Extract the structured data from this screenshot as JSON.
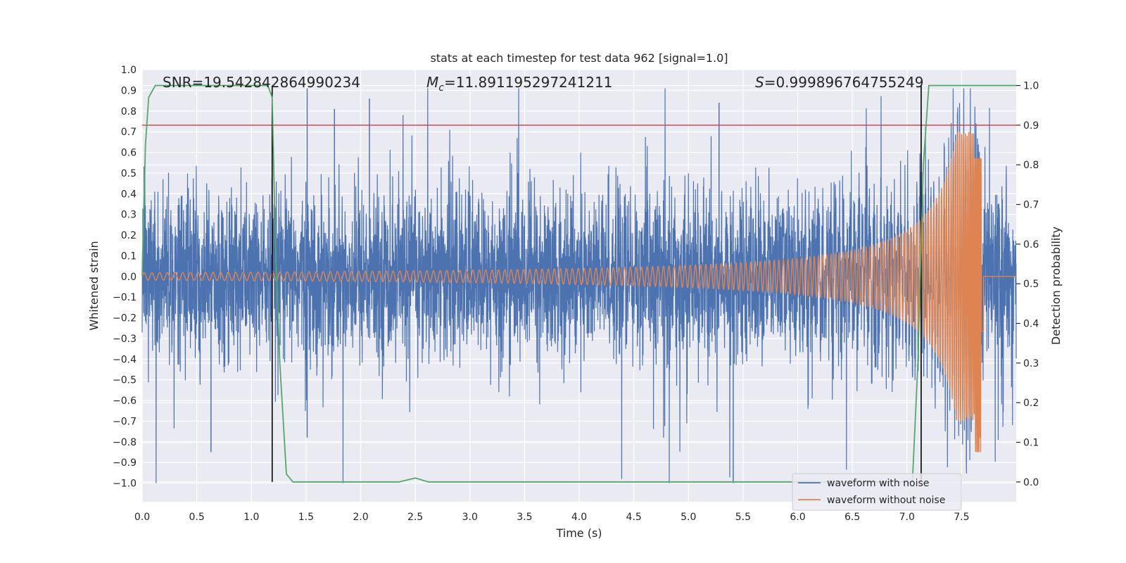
{
  "chart_data": {
    "type": "line",
    "title": "stats at each timestep for test data 962 [signal=1.0]",
    "xlabel": "Time (s)",
    "ylabel": "Whitened strain",
    "y2label": "Detection probability",
    "xlim": [
      0.0,
      8.0
    ],
    "ylim": [
      -1.09,
      1.0
    ],
    "y2lim": [
      -0.05,
      1.04
    ],
    "xticks": [
      "0.0",
      "0.5",
      "1.0",
      "1.5",
      "2.0",
      "2.5",
      "3.0",
      "3.5",
      "4.0",
      "4.5",
      "5.0",
      "5.5",
      "6.0",
      "6.5",
      "7.0",
      "7.5"
    ],
    "yticks": [
      "1.0",
      "0.9",
      "0.8",
      "0.7",
      "0.6",
      "0.5",
      "0.4",
      "0.3",
      "0.2",
      "0.1",
      "0.0",
      "−0.1",
      "−0.2",
      "−0.3",
      "−0.4",
      "−0.5",
      "−0.6",
      "−0.7",
      "−0.8",
      "−0.9",
      "−1.0"
    ],
    "y2ticks": [
      "1.0",
      "0.9",
      "0.8",
      "0.7",
      "0.6",
      "0.5",
      "0.4",
      "0.3",
      "0.2",
      "0.1",
      "0.0"
    ],
    "grid": true,
    "legend_position": "lower-right",
    "annotations": {
      "snr": "SNR=19.542842864990234",
      "mc_symbol": "M",
      "mc_sub": "c",
      "mc_value": "=11.891195297241211",
      "s_symbol": "S",
      "s_value": "=0.999896764755249"
    },
    "threshold_line": {
      "y2": 0.9,
      "color": "#c44e52"
    },
    "vertical_lines": [
      1.19,
      7.13
    ],
    "series": [
      {
        "name": "waveform with noise",
        "color": "#4c72b0",
        "envelope": {
          "core_amplitude": 0.3,
          "spike_max": 0.91,
          "spike_min": -1.0,
          "extreme_spikes": [
            [
              1.51,
              0.91
            ],
            [
              1.76,
              0.81
            ],
            [
              2.08,
              0.86
            ],
            [
              5.28,
              0.84
            ],
            [
              5.41,
              -1.0
            ],
            [
              0.63,
              -0.85
            ],
            [
              1.51,
              -0.78
            ]
          ]
        }
      },
      {
        "name": "waveform without noise",
        "color": "#dd8452",
        "chirp": {
          "start_amplitude": 0.018,
          "peak_time": 7.68,
          "peak_value": 0.57,
          "trough_value": -0.85,
          "end_time": 7.7,
          "f_start": 14.0
        }
      },
      {
        "name": "",
        "color": "#55a868",
        "axis": "y2",
        "points": [
          [
            0.0,
            0.52
          ],
          [
            0.03,
            0.85
          ],
          [
            0.06,
            0.97
          ],
          [
            0.12,
            1.0
          ],
          [
            1.15,
            1.0
          ],
          [
            1.19,
            0.97
          ],
          [
            1.22,
            0.6
          ],
          [
            1.26,
            0.3
          ],
          [
            1.32,
            0.02
          ],
          [
            1.38,
            0.0
          ],
          [
            2.35,
            0.0
          ],
          [
            2.5,
            0.01
          ],
          [
            2.62,
            0.0
          ],
          [
            7.05,
            0.0
          ],
          [
            7.1,
            0.3
          ],
          [
            7.15,
            0.8
          ],
          [
            7.2,
            1.0
          ],
          [
            8.0,
            1.0
          ]
        ]
      }
    ]
  }
}
